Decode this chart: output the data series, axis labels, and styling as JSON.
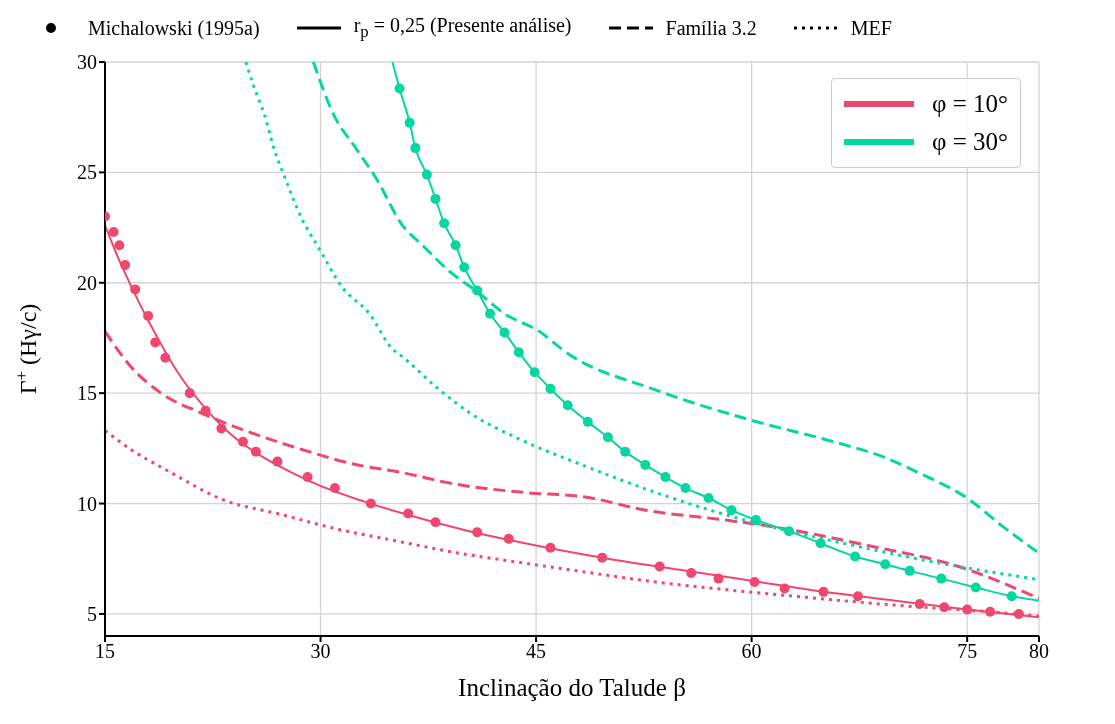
{
  "chart_data": {
    "type": "line",
    "xlabel": "Inclinação do Talude β",
    "ylabel": "Γ$^{+}$ (Hγ/c)",
    "xlim": [
      15,
      80
    ],
    "xticks": [
      15,
      30,
      45,
      60,
      75,
      80
    ],
    "ylim": [
      4,
      30
    ],
    "yticks": [
      5,
      10,
      15,
      20,
      25,
      30
    ],
    "grid": true,
    "legend": "top right",
    "annotations": [
      "Michalowski (1995a)",
      "r$_{p}$ = 0,25 (Presente análise)",
      "Família 3.2",
      "MEF"
    ],
    "series": [
      {
        "type": "scatter",
        "marker": "circle",
        "color": "#ef476f",
        "x": [
          15,
          15.6,
          16.0,
          16.4,
          17.1,
          18.0,
          18.5,
          19.2,
          20.9,
          22.0,
          23.1,
          24.6,
          25.5,
          27.0,
          29.1,
          31.0,
          33.5,
          36.1,
          38.0,
          40.9,
          43.1,
          46.0,
          49.6,
          53.6,
          55.8,
          57.7,
          60.2,
          62.3,
          65.0,
          67.4,
          71.7,
          73.4,
          75.0,
          76.6,
          78.6
        ],
        "values": [
          23.0,
          22.3,
          21.7,
          20.8,
          19.7,
          18.5,
          17.3,
          16.6,
          15.0,
          14.2,
          13.4,
          12.8,
          12.35,
          11.9,
          11.2,
          10.7,
          10.0,
          9.55,
          9.15,
          8.7,
          8.4,
          8.0,
          7.55,
          7.15,
          6.85,
          6.6,
          6.45,
          6.15,
          6.0,
          5.8,
          5.45,
          5.3,
          5.2,
          5.1,
          5.0
        ]
      },
      {
        "type": "line",
        "line_style": "solid",
        "name": "φ = 10°",
        "color": "#ef476f",
        "x": [
          15,
          16,
          17,
          18,
          19,
          20,
          22,
          24,
          26,
          28,
          30,
          33,
          36,
          40,
          45,
          50,
          55,
          60,
          65,
          70,
          75,
          80
        ],
        "values": [
          22.6,
          21.0,
          19.6,
          18.3,
          17.1,
          16.0,
          14.3,
          13.0,
          12.1,
          11.4,
          10.8,
          10.1,
          9.5,
          8.8,
          8.1,
          7.5,
          7.0,
          6.5,
          6.0,
          5.6,
          5.2,
          4.85
        ]
      },
      {
        "type": "line",
        "line_style": "dashed",
        "color": "#ef476f",
        "x": [
          15,
          16.8,
          18.9,
          21.7,
          25.2,
          28.7,
          32.2,
          35.7,
          39.2,
          44.2,
          48.4,
          52.6,
          58.2,
          61.0,
          68.1,
          74.4,
          80
        ],
        "values": [
          17.8,
          16.2,
          15.0,
          14.1,
          13.2,
          12.45,
          11.8,
          11.4,
          10.9,
          10.5,
          10.3,
          9.7,
          9.25,
          9.0,
          8.1,
          7.15,
          5.7
        ]
      },
      {
        "type": "line",
        "line_style": "dotted",
        "color": "#ef476f",
        "x": [
          15,
          16.8,
          19.6,
          23.1,
          27.3,
          30.8,
          35.7,
          39.2,
          44.2,
          48.4,
          53.3,
          58.2,
          63.8,
          70.9,
          76.5,
          80
        ],
        "values": [
          13.3,
          12.45,
          11.4,
          10.2,
          9.5,
          8.9,
          8.25,
          7.8,
          7.3,
          6.9,
          6.45,
          6.1,
          5.75,
          5.35,
          5.1,
          4.9
        ]
      },
      {
        "type": "scatter",
        "marker": "circle",
        "color": "#06d6a0",
        "x": [
          35.5,
          36.2,
          36.6,
          37.4,
          38.0,
          38.6,
          39.4,
          40.0,
          40.9,
          41.8,
          42.8,
          43.8,
          44.9,
          46.0,
          47.2,
          48.6,
          50.0,
          51.2,
          52.6,
          54.0,
          55.4,
          57.0,
          58.6,
          60.3,
          62.6,
          64.8,
          67.2,
          69.3,
          71.0,
          73.2,
          75.6,
          78.1
        ],
        "values": [
          28.8,
          27.25,
          26.1,
          24.9,
          23.8,
          22.7,
          21.7,
          20.7,
          19.65,
          18.6,
          17.75,
          16.85,
          15.95,
          15.2,
          14.45,
          13.7,
          13.0,
          12.35,
          11.75,
          11.2,
          10.7,
          10.25,
          9.7,
          9.25,
          8.75,
          8.2,
          7.6,
          7.25,
          6.95,
          6.6,
          6.2,
          5.8
        ]
      },
      {
        "type": "line",
        "line_style": "solid",
        "name": "φ = 30°",
        "color": "#06d6a0",
        "x": [
          35.0,
          35.5,
          36.2,
          36.6,
          37.4,
          38.0,
          38.6,
          39.4,
          40.0,
          40.9,
          41.8,
          42.8,
          43.8,
          44.9,
          46.0,
          47.2,
          48.6,
          50.0,
          51.2,
          52.6,
          54.0,
          55.4,
          57.0,
          58.6,
          60.3,
          62.6,
          64.8,
          67.2,
          69.3,
          71.0,
          73.2,
          75.6,
          78.1,
          80
        ],
        "values": [
          30,
          28.8,
          27.25,
          26.1,
          24.9,
          23.8,
          22.7,
          21.7,
          20.7,
          19.65,
          18.6,
          17.75,
          16.85,
          15.95,
          15.2,
          14.45,
          13.7,
          13.0,
          12.35,
          11.75,
          11.2,
          10.7,
          10.25,
          9.7,
          9.25,
          8.75,
          8.2,
          7.6,
          7.25,
          6.95,
          6.6,
          6.2,
          5.8,
          5.6
        ]
      },
      {
        "type": "line",
        "line_style": "dashed",
        "color": "#06d6a0",
        "x": [
          29.5,
          31.0,
          32.4,
          33.9,
          35.7,
          37.1,
          39.0,
          40.9,
          42.8,
          45.1,
          47.2,
          53.3,
          60.1,
          65.7,
          69.2,
          71.6,
          75.1,
          77.4,
          80
        ],
        "values": [
          30,
          27.5,
          26.15,
          24.7,
          22.6,
          21.7,
          20.5,
          19.6,
          18.6,
          17.85,
          16.8,
          15.15,
          13.75,
          12.8,
          12.1,
          11.4,
          10.2,
          9.0,
          7.75
        ]
      },
      {
        "type": "line",
        "line_style": "dotted",
        "color": "#06d6a0",
        "x": [
          24.8,
          25.3,
          26.1,
          26.8,
          27.5,
          28.7,
          29.9,
          31.5,
          33.4,
          35.0,
          35.7,
          38.1,
          40.4,
          43.9,
          48.0,
          54.0,
          60.1,
          65.7,
          72.7,
          80
        ],
        "values": [
          30,
          29.0,
          27.6,
          26.0,
          24.8,
          22.9,
          21.55,
          19.8,
          18.6,
          17.0,
          16.65,
          15.25,
          14.1,
          12.9,
          11.8,
          10.35,
          9.15,
          8.3,
          7.35,
          6.55
        ]
      }
    ]
  }
}
